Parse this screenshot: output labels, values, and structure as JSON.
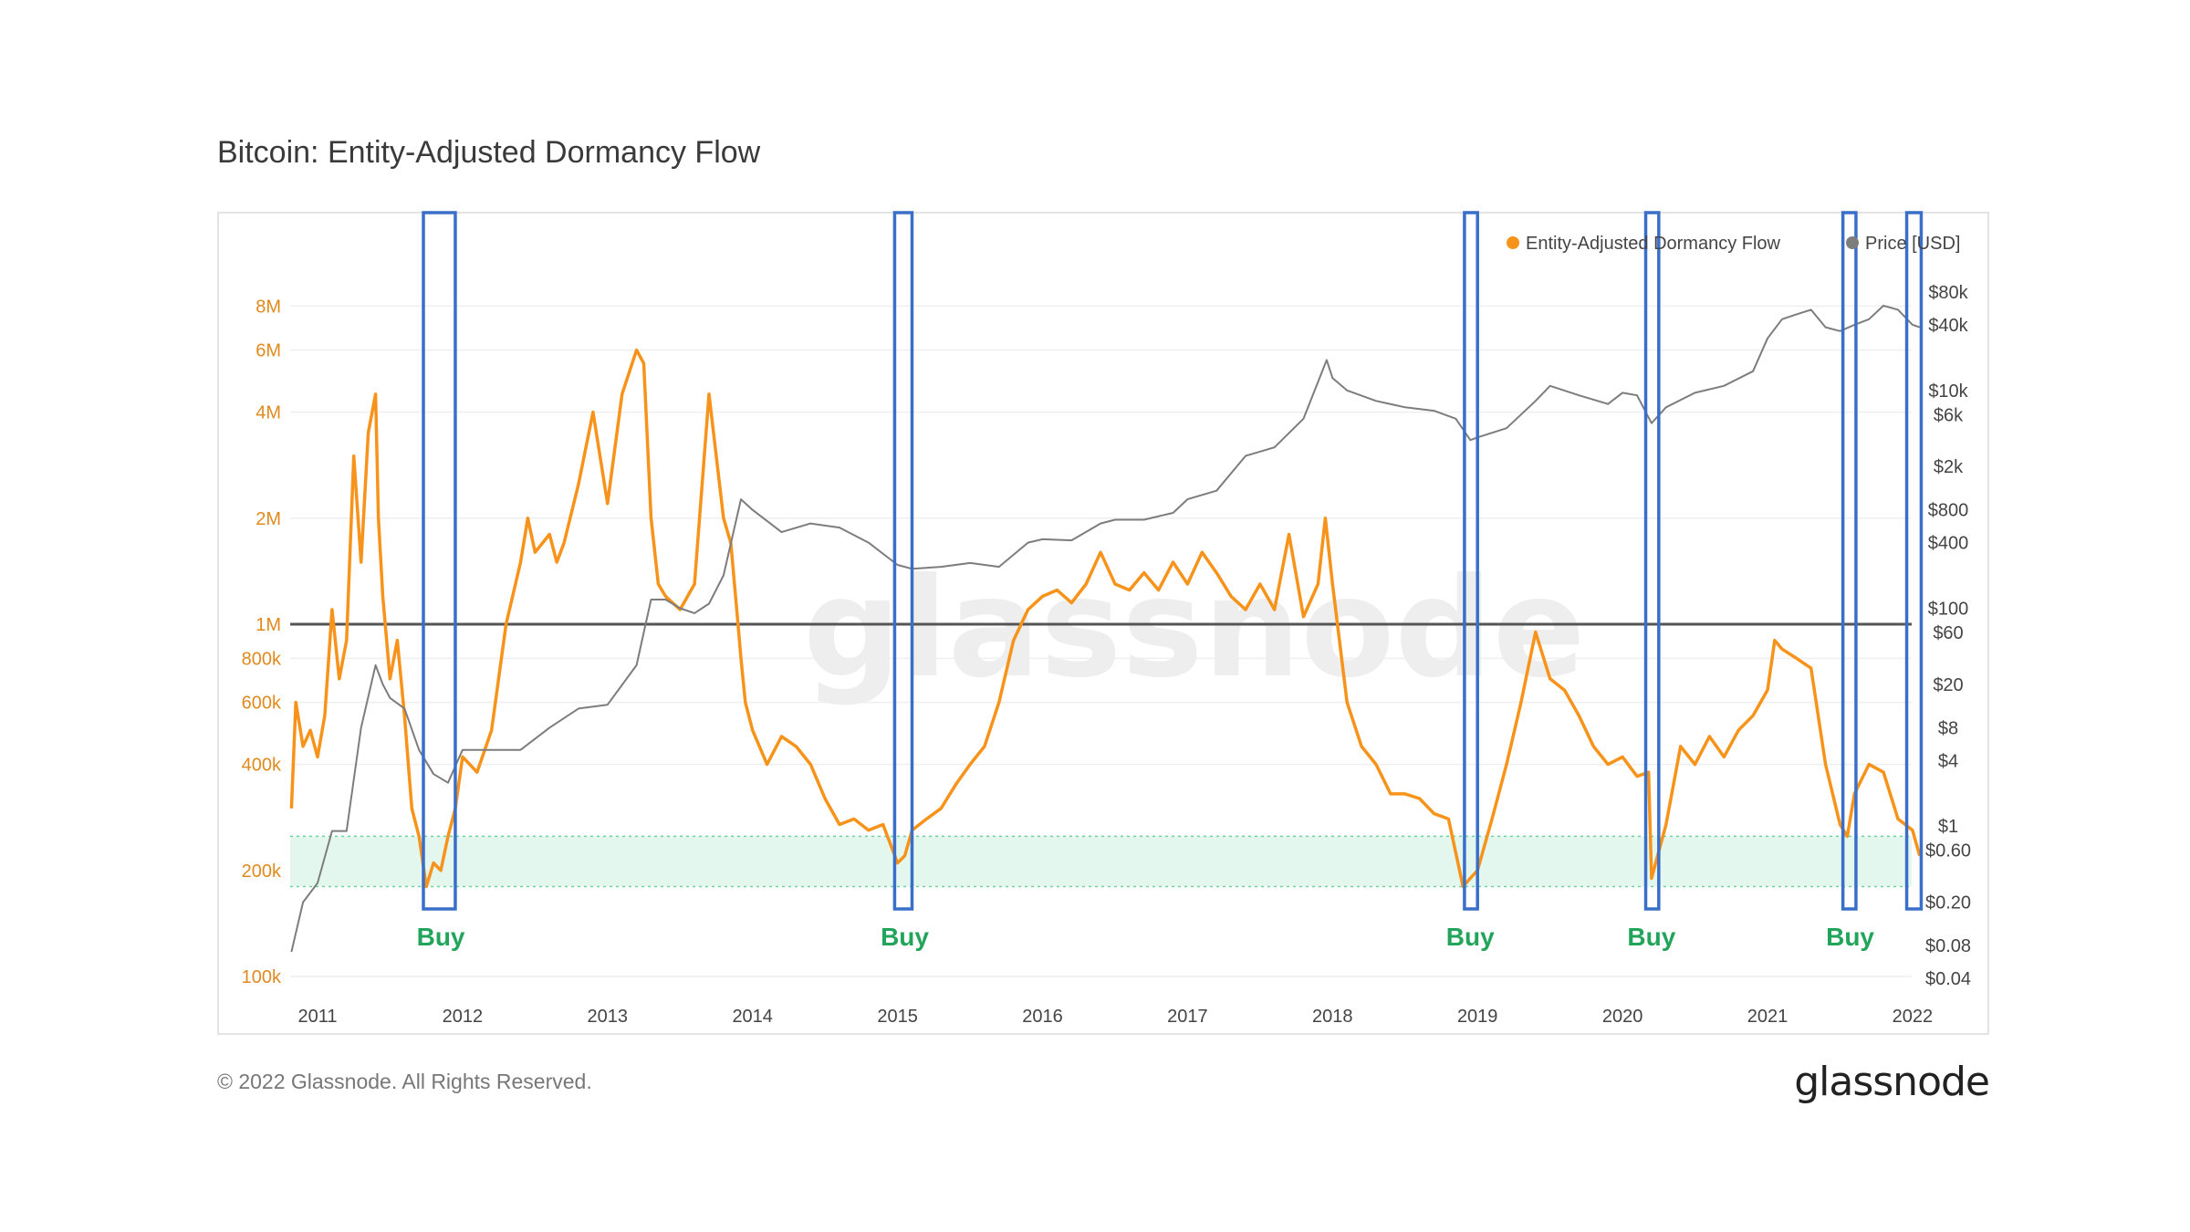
{
  "header": {
    "title": "Bitcoin: Entity-Adjusted Dormancy Flow"
  },
  "footer": {
    "copyright": "© 2022 Glassnode. All Rights Reserved.",
    "brand": "glassnode"
  },
  "watermark": "glassnode",
  "chart_data": {
    "type": "line",
    "title": "Bitcoin: Entity-Adjusted Dormancy Flow",
    "x_ticks": [
      "2011",
      "2012",
      "2013",
      "2014",
      "2015",
      "2016",
      "2017",
      "2018",
      "2019",
      "2020",
      "2021",
      "2022"
    ],
    "y_left": {
      "scale": "log",
      "ticks": [
        "100k",
        "200k",
        "400k",
        "600k",
        "800k",
        "1M",
        "2M",
        "4M",
        "6M",
        "8M"
      ],
      "range": [
        100000,
        10000000
      ]
    },
    "y_right": {
      "scale": "log",
      "ticks": [
        "$0.04",
        "$0.08",
        "$0.20",
        "$0.60",
        "$1",
        "$4",
        "$8",
        "$20",
        "$60",
        "$100",
        "$400",
        "$800",
        "$2k",
        "$6k",
        "$10k",
        "$40k",
        "$80k"
      ],
      "range": [
        0.04,
        80000
      ]
    },
    "legend": {
      "position": "top-right",
      "items": [
        {
          "name": "Entity-Adjusted Dormancy Flow",
          "color": "#f7931a"
        },
        {
          "name": "Price [USD]",
          "color": "#7d7d7d"
        }
      ]
    },
    "reference_line": {
      "value": 1000000,
      "color": "#555555"
    },
    "buy_zone": {
      "range": [
        180000,
        250000
      ],
      "color": "#e3f7ee"
    },
    "buy_labels": [
      {
        "text": "Buy",
        "x": 2011.85
      },
      {
        "text": "Buy",
        "x": 2015.05
      },
      {
        "text": "Buy",
        "x": 2018.95
      },
      {
        "text": "Buy",
        "x": 2020.2
      },
      {
        "text": "Buy",
        "x": 2021.57
      }
    ],
    "highlight_boxes": [
      {
        "x": [
          2011.73,
          2011.95
        ]
      },
      {
        "x": [
          2014.98,
          2015.1
        ]
      },
      {
        "x": [
          2018.91,
          2019.0
        ]
      },
      {
        "x": [
          2020.16,
          2020.25
        ]
      },
      {
        "x": [
          2021.52,
          2021.61
        ]
      },
      {
        "x": [
          2021.96,
          2022.06
        ]
      }
    ],
    "series": [
      {
        "name": "Entity-Adjusted Dormancy Flow",
        "color": "#f7931a",
        "axis": "left",
        "x": [
          2010.82,
          2010.85,
          2010.9,
          2010.95,
          2011.0,
          2011.05,
          2011.1,
          2011.15,
          2011.2,
          2011.25,
          2011.3,
          2011.35,
          2011.4,
          2011.42,
          2011.45,
          2011.5,
          2011.55,
          2011.6,
          2011.65,
          2011.7,
          2011.75,
          2011.8,
          2011.85,
          2011.9,
          2011.95,
          2012.0,
          2012.05,
          2012.1,
          2012.2,
          2012.3,
          2012.4,
          2012.45,
          2012.5,
          2012.6,
          2012.65,
          2012.7,
          2012.8,
          2012.9,
          2013.0,
          2013.1,
          2013.2,
          2013.25,
          2013.3,
          2013.35,
          2013.4,
          2013.5,
          2013.6,
          2013.7,
          2013.8,
          2013.85,
          2013.9,
          2013.92,
          2013.95,
          2014.0,
          2014.1,
          2014.2,
          2014.3,
          2014.4,
          2014.5,
          2014.6,
          2014.7,
          2014.8,
          2014.9,
          2015.0,
          2015.05,
          2015.1,
          2015.2,
          2015.3,
          2015.4,
          2015.5,
          2015.6,
          2015.7,
          2015.8,
          2015.9,
          2016.0,
          2016.1,
          2016.2,
          2016.3,
          2016.4,
          2016.5,
          2016.6,
          2016.7,
          2016.8,
          2016.9,
          2017.0,
          2017.1,
          2017.2,
          2017.3,
          2017.4,
          2017.5,
          2017.6,
          2017.7,
          2017.8,
          2017.9,
          2017.95,
          2018.0,
          2018.1,
          2018.2,
          2018.3,
          2018.4,
          2018.5,
          2018.6,
          2018.7,
          2018.8,
          2018.9,
          2018.95,
          2019.0,
          2019.1,
          2019.2,
          2019.3,
          2019.4,
          2019.5,
          2019.6,
          2019.7,
          2019.8,
          2019.9,
          2020.0,
          2020.1,
          2020.18,
          2020.2,
          2020.3,
          2020.4,
          2020.5,
          2020.6,
          2020.7,
          2020.8,
          2020.9,
          2021.0,
          2021.05,
          2021.1,
          2021.2,
          2021.3,
          2021.4,
          2021.5,
          2021.55,
          2021.6,
          2021.7,
          2021.8,
          2021.9,
          2022.0,
          2022.05
        ],
        "values": [
          300000,
          600000,
          450000,
          500000,
          420000,
          550000,
          1100000,
          700000,
          900000,
          3000000,
          1500000,
          3500000,
          4500000,
          2000000,
          1200000,
          700000,
          900000,
          550000,
          300000,
          250000,
          180000,
          210000,
          200000,
          250000,
          300000,
          420000,
          400000,
          380000,
          500000,
          1000000,
          1500000,
          2000000,
          1600000,
          1800000,
          1500000,
          1700000,
          2500000,
          4000000,
          2200000,
          4500000,
          6000000,
          5500000,
          2000000,
          1300000,
          1200000,
          1100000,
          1300000,
          4500000,
          2000000,
          1700000,
          1000000,
          800000,
          600000,
          500000,
          400000,
          480000,
          450000,
          400000,
          320000,
          270000,
          280000,
          260000,
          270000,
          210000,
          220000,
          260000,
          280000,
          300000,
          350000,
          400000,
          450000,
          600000,
          900000,
          1100000,
          1200000,
          1250000,
          1150000,
          1300000,
          1600000,
          1300000,
          1250000,
          1400000,
          1250000,
          1500000,
          1300000,
          1600000,
          1400000,
          1200000,
          1100000,
          1300000,
          1100000,
          1800000,
          1050000,
          1300000,
          2000000,
          1300000,
          600000,
          450000,
          400000,
          330000,
          330000,
          320000,
          290000,
          280000,
          180000,
          190000,
          200000,
          280000,
          400000,
          600000,
          950000,
          700000,
          650000,
          550000,
          450000,
          400000,
          420000,
          370000,
          380000,
          190000,
          270000,
          450000,
          400000,
          480000,
          420000,
          500000,
          550000,
          650000,
          900000,
          850000,
          800000,
          750000,
          400000,
          270000,
          250000,
          330000,
          400000,
          380000,
          280000,
          260000,
          220000
        ]
      },
      {
        "name": "Price [USD]",
        "color": "#7d7d7d",
        "axis": "right",
        "x": [
          2010.82,
          2010.9,
          2011.0,
          2011.1,
          2011.2,
          2011.3,
          2011.4,
          2011.45,
          2011.5,
          2011.6,
          2011.7,
          2011.8,
          2011.9,
          2012.0,
          2012.2,
          2012.4,
          2012.6,
          2012.8,
          2013.0,
          2013.2,
          2013.3,
          2013.4,
          2013.5,
          2013.6,
          2013.7,
          2013.8,
          2013.92,
          2014.0,
          2014.2,
          2014.4,
          2014.6,
          2014.8,
          2015.0,
          2015.1,
          2015.3,
          2015.5,
          2015.7,
          2015.9,
          2016.0,
          2016.2,
          2016.4,
          2016.5,
          2016.7,
          2016.9,
          2017.0,
          2017.2,
          2017.4,
          2017.6,
          2017.8,
          2017.96,
          2018.0,
          2018.1,
          2018.3,
          2018.5,
          2018.7,
          2018.85,
          2018.95,
          2019.0,
          2019.2,
          2019.4,
          2019.5,
          2019.7,
          2019.9,
          2020.0,
          2020.1,
          2020.2,
          2020.3,
          2020.5,
          2020.7,
          2020.9,
          2021.0,
          2021.1,
          2021.2,
          2021.3,
          2021.4,
          2021.5,
          2021.6,
          2021.7,
          2021.8,
          2021.9,
          2022.0,
          2022.05
        ],
        "values": [
          0.07,
          0.2,
          0.3,
          0.9,
          0.9,
          8,
          30,
          20,
          15,
          12,
          5,
          3,
          2.5,
          5,
          5,
          5,
          8,
          12,
          13,
          30,
          120,
          120,
          100,
          90,
          110,
          200,
          1000,
          800,
          500,
          600,
          550,
          400,
          250,
          230,
          240,
          260,
          240,
          400,
          430,
          420,
          600,
          650,
          650,
          750,
          1000,
          1200,
          2500,
          3000,
          5500,
          19000,
          13000,
          10000,
          8000,
          7000,
          6500,
          5500,
          3500,
          3700,
          4500,
          8000,
          11000,
          9000,
          7500,
          9500,
          9000,
          5000,
          7000,
          9500,
          11000,
          15000,
          30000,
          45000,
          50000,
          55000,
          38000,
          35000,
          40000,
          45000,
          60000,
          55000,
          40000,
          38000
        ]
      }
    ]
  }
}
